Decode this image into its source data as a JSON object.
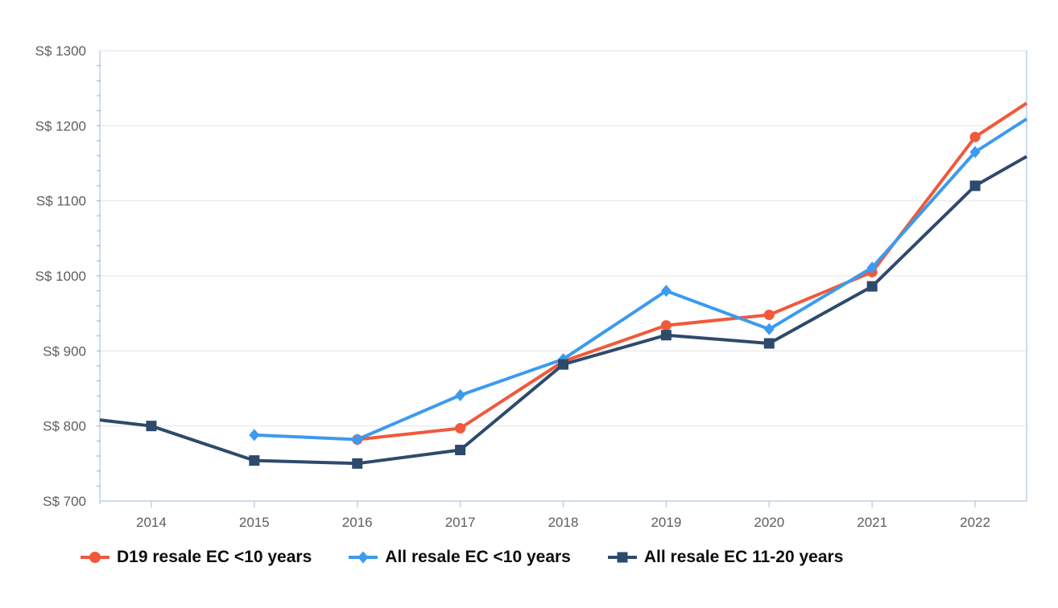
{
  "chart_data": {
    "type": "line",
    "title": "",
    "legend_position": "bottom",
    "grid": "horizontal-major",
    "y_axis": {
      "tick_prefix": "S$ ",
      "min": 700,
      "max": 1300,
      "major_step": 100,
      "minor_step": 20,
      "tick_labels": [
        "S$ 700",
        "S$ 800",
        "S$ 900",
        "S$ 1000",
        "S$ 1100",
        "S$ 1200",
        "S$ 1300"
      ]
    },
    "x_axis": {
      "tick_labels": [
        "2014",
        "2015",
        "2016",
        "2017",
        "2018",
        "2019",
        "2020",
        "2021",
        "2022"
      ],
      "range_start": 2013.5,
      "range_end": 2022.5
    },
    "series": [
      {
        "name": "D19 resale EC <10 years",
        "color": "#f0593b",
        "marker": "circle",
        "points": [
          {
            "x": 2016,
            "y": 782
          },
          {
            "x": 2017,
            "y": 797
          },
          {
            "x": 2018,
            "y": 886
          },
          {
            "x": 2019,
            "y": 934
          },
          {
            "x": 2020,
            "y": 948
          },
          {
            "x": 2021,
            "y": 1005
          },
          {
            "x": 2022,
            "y": 1185
          },
          {
            "x": 2022.5,
            "y": 1230,
            "marker": false,
            "edge": true
          }
        ]
      },
      {
        "name": "All resale EC <10 years",
        "color": "#3c9aef",
        "marker": "diamond",
        "points": [
          {
            "x": 2015,
            "y": 788
          },
          {
            "x": 2016,
            "y": 782
          },
          {
            "x": 2017,
            "y": 841
          },
          {
            "x": 2018,
            "y": 889
          },
          {
            "x": 2019,
            "y": 980
          },
          {
            "x": 2020,
            "y": 929
          },
          {
            "x": 2021,
            "y": 1011
          },
          {
            "x": 2022,
            "y": 1165
          },
          {
            "x": 2022.5,
            "y": 1209,
            "marker": false,
            "edge": true
          }
        ]
      },
      {
        "name": "All resale EC 11-20 years",
        "color": "#2e4a6b",
        "marker": "square",
        "points": [
          {
            "x": 2013.5,
            "y": 808,
            "marker": false,
            "edge": true
          },
          {
            "x": 2014,
            "y": 800
          },
          {
            "x": 2015,
            "y": 754
          },
          {
            "x": 2016,
            "y": 750
          },
          {
            "x": 2017,
            "y": 768
          },
          {
            "x": 2018,
            "y": 882
          },
          {
            "x": 2019,
            "y": 921
          },
          {
            "x": 2020,
            "y": 910
          },
          {
            "x": 2021,
            "y": 986
          },
          {
            "x": 2022,
            "y": 1120
          },
          {
            "x": 2022.5,
            "y": 1159,
            "marker": false,
            "edge": true
          }
        ]
      }
    ],
    "colors": {
      "gridline": "#e8e8e8",
      "axis_line": "#bdd1e9",
      "minor_tick": "#9fb0c6",
      "tick_text": "#5b5e63",
      "legend_text": "#0d0d0d",
      "background": "#ffffff"
    }
  }
}
